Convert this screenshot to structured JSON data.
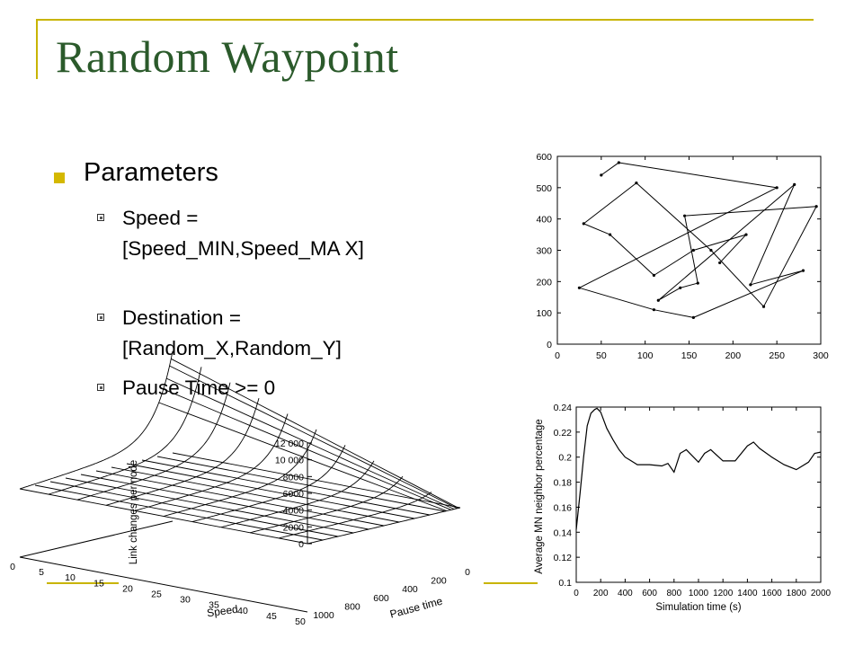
{
  "slide": {
    "title": "Random Waypoint",
    "bullet": "Parameters",
    "sub_bullets": [
      "Speed = [Speed_MIN,Speed_MA X]",
      "Destination = [Random_X,Random_Y]",
      "Pause Time >= 0"
    ],
    "colors": {
      "title": "#2b5a2b",
      "accent": "#c8b400"
    }
  },
  "chart_data": [
    {
      "type": "line",
      "xlim": [
        0,
        300
      ],
      "ylim": [
        0,
        600
      ],
      "xticks": [
        0,
        50,
        100,
        150,
        200,
        250,
        300
      ],
      "yticks": [
        0,
        100,
        200,
        300,
        400,
        500,
        600
      ],
      "x": [
        50,
        70,
        250,
        25,
        110,
        155,
        280,
        220,
        270,
        115,
        140,
        160,
        145,
        295,
        235,
        175,
        90,
        30,
        60,
        110,
        155,
        215,
        185
      ],
      "y": [
        540,
        580,
        500,
        180,
        110,
        85,
        235,
        190,
        510,
        140,
        180,
        195,
        410,
        440,
        120,
        300,
        515,
        385,
        350,
        220,
        300,
        350,
        260
      ],
      "xlabel": "",
      "ylabel": "",
      "title": ""
    },
    {
      "type": "line",
      "xlim": [
        0,
        2000
      ],
      "ylim": [
        0.1,
        0.24
      ],
      "xticks": [
        0,
        200,
        400,
        600,
        800,
        1000,
        1200,
        1400,
        1600,
        1800,
        2000
      ],
      "yticks": [
        0.1,
        0.12,
        0.14,
        0.16,
        0.18,
        0.2,
        0.22,
        0.24
      ],
      "x": [
        0,
        30,
        60,
        90,
        120,
        150,
        170,
        200,
        250,
        300,
        350,
        400,
        450,
        500,
        600,
        700,
        750,
        800,
        850,
        900,
        1000,
        1050,
        1100,
        1200,
        1300,
        1400,
        1450,
        1500,
        1600,
        1700,
        1800,
        1900,
        1950,
        2000
      ],
      "y": [
        0.142,
        0.17,
        0.2,
        0.225,
        0.235,
        0.238,
        0.239,
        0.236,
        0.223,
        0.214,
        0.206,
        0.2,
        0.197,
        0.194,
        0.194,
        0.193,
        0.195,
        0.188,
        0.203,
        0.206,
        0.196,
        0.203,
        0.206,
        0.197,
        0.197,
        0.209,
        0.212,
        0.207,
        0.2,
        0.194,
        0.19,
        0.196,
        0.203,
        0.204
      ],
      "xlabel": "Simulation time (s)",
      "ylabel": "Average MN neighbor percentage",
      "title": ""
    },
    {
      "type": "surface",
      "zticks": [
        0,
        2000,
        4000,
        6000,
        8000,
        10000,
        12000
      ],
      "zticklabels": [
        "0",
        "2000",
        "4000",
        "6000",
        "8000",
        "10 000",
        "12 000"
      ],
      "speed_ticks": [
        0,
        5,
        10,
        15,
        20,
        25,
        30,
        35,
        40,
        45,
        50
      ],
      "pause_ticks": [
        1000,
        800,
        600,
        400,
        200,
        0
      ],
      "surface_description_values": {
        "max_link_changes": 12500,
        "at_speed": 50,
        "at_pause_time": 0
      },
      "xlabel": "Speed",
      "ylabel": "Pause time",
      "zlabel": "Link changes per node",
      "title": ""
    }
  ]
}
